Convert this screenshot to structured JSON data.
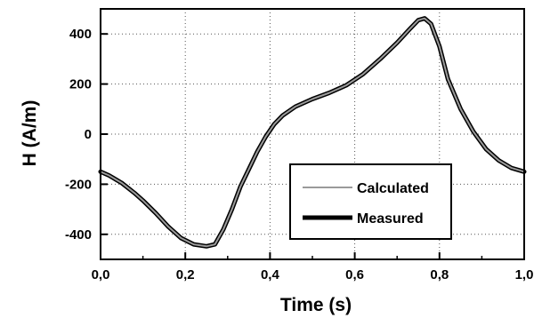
{
  "chart_data": {
    "type": "line",
    "xlabel": "Time (s)",
    "ylabel": "H (A/m)",
    "xlim": [
      0,
      1
    ],
    "ylim": [
      -500,
      500
    ],
    "x_ticks": [
      0,
      0.2,
      0.4,
      0.6,
      0.8,
      1.0
    ],
    "x_tick_labels": [
      "0,0",
      "0,2",
      "0,4",
      "0,6",
      "0,8",
      "1,0"
    ],
    "y_ticks": [
      -400,
      -200,
      0,
      200,
      400
    ],
    "y_tick_labels": [
      "-400",
      "-200",
      "0",
      "200",
      "400"
    ],
    "grid": true,
    "legend_position": "bottom-right",
    "series": [
      {
        "name": "Calculated",
        "color": "#9a9a9a",
        "style": "thin",
        "x": [
          0.0,
          0.02,
          0.05,
          0.08,
          0.1,
          0.13,
          0.16,
          0.19,
          0.22,
          0.25,
          0.27,
          0.29,
          0.31,
          0.33,
          0.35,
          0.37,
          0.39,
          0.41,
          0.43,
          0.46,
          0.5,
          0.54,
          0.58,
          0.62,
          0.66,
          0.7,
          0.73,
          0.75,
          0.765,
          0.78,
          0.8,
          0.82,
          0.85,
          0.88,
          0.91,
          0.94,
          0.97,
          1.0
        ],
        "y": [
          -150,
          -165,
          -195,
          -235,
          -265,
          -315,
          -370,
          -415,
          -440,
          -448,
          -440,
          -380,
          -300,
          -210,
          -140,
          -70,
          -10,
          40,
          75,
          110,
          140,
          165,
          195,
          240,
          300,
          365,
          420,
          455,
          462,
          440,
          350,
          220,
          100,
          10,
          -60,
          -105,
          -135,
          -150
        ]
      },
      {
        "name": "Measured",
        "color": "#000000",
        "style": "thick",
        "x": [
          0.0,
          0.02,
          0.05,
          0.08,
          0.1,
          0.13,
          0.16,
          0.19,
          0.22,
          0.25,
          0.27,
          0.29,
          0.31,
          0.33,
          0.35,
          0.37,
          0.39,
          0.41,
          0.43,
          0.46,
          0.5,
          0.54,
          0.58,
          0.62,
          0.66,
          0.7,
          0.73,
          0.75,
          0.765,
          0.78,
          0.8,
          0.82,
          0.85,
          0.88,
          0.91,
          0.94,
          0.97,
          1.0
        ],
        "y": [
          -150,
          -165,
          -195,
          -235,
          -265,
          -315,
          -370,
          -415,
          -440,
          -448,
          -440,
          -380,
          -300,
          -210,
          -140,
          -70,
          -10,
          40,
          75,
          110,
          140,
          165,
          195,
          240,
          300,
          365,
          420,
          455,
          462,
          440,
          350,
          220,
          100,
          10,
          -60,
          -105,
          -135,
          -150
        ]
      }
    ]
  }
}
